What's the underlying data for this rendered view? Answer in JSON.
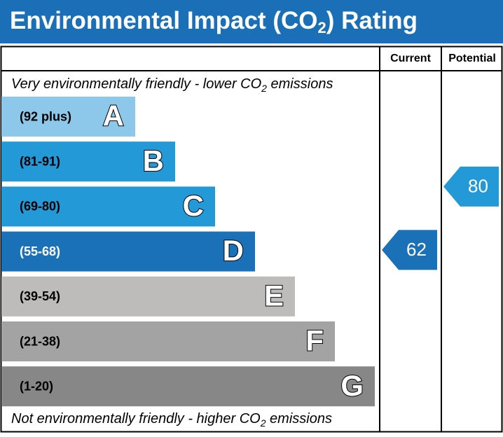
{
  "title": {
    "before": "Environmental Impact (CO",
    "sub": "2",
    "after": ") Rating"
  },
  "columns": {
    "current": "Current",
    "potential": "Potential"
  },
  "top_note": {
    "before": "Very environmentally friendly - lower CO",
    "sub": "2",
    "after": " emissions"
  },
  "bottom_note": {
    "before": "Not environmentally friendly - higher CO",
    "sub": "2",
    "after": " emissions"
  },
  "bands": [
    {
      "range": "(92 plus)",
      "letter": "A",
      "color": "#8dc7e9"
    },
    {
      "range": "(81-91)",
      "letter": "B",
      "color": "#2399d7"
    },
    {
      "range": "(69-80)",
      "letter": "C",
      "color": "#2399d7"
    },
    {
      "range": "(55-68)",
      "letter": "D",
      "color": "#1b71b7"
    },
    {
      "range": "(39-54)",
      "letter": "E",
      "color": "#bdbcbb"
    },
    {
      "range": "(21-38)",
      "letter": "F",
      "color": "#a4a3a3"
    },
    {
      "range": "(1-20)",
      "letter": "G",
      "color": "#878787"
    }
  ],
  "ratings": {
    "current": {
      "value": 62,
      "color": "#1b71b7"
    },
    "potential": {
      "value": 80,
      "color": "#2399d7"
    }
  }
}
